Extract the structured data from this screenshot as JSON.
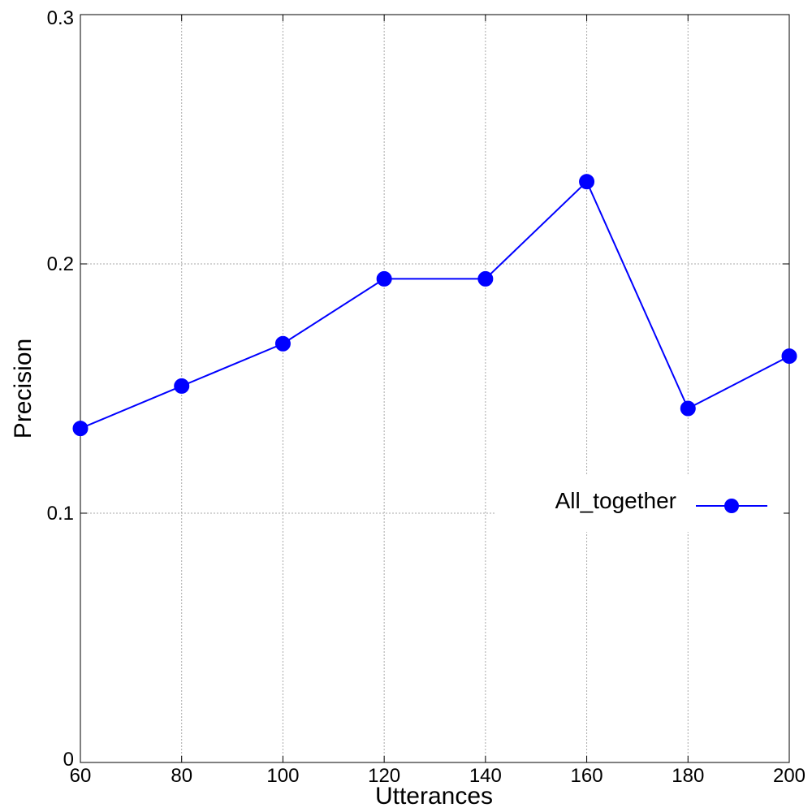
{
  "chart_data": {
    "type": "line",
    "title": "",
    "xlabel": "Utterances",
    "ylabel": "Precision",
    "xlim": [
      60,
      200
    ],
    "ylim": [
      0,
      0.3
    ],
    "x_ticks": [
      60,
      80,
      100,
      120,
      140,
      160,
      180,
      200
    ],
    "x_tick_labels": [
      "60",
      "80",
      "100",
      "120",
      "140",
      "160",
      "180",
      "200"
    ],
    "y_ticks": [
      0,
      0.1,
      0.2,
      0.3
    ],
    "y_tick_labels": [
      "0",
      "0.1",
      "0.2",
      "0.3"
    ],
    "grid": true,
    "legend_position": "center-right",
    "series": [
      {
        "name": "All_together",
        "color": "#0000ff",
        "marker": "circle",
        "x": [
          60,
          80,
          100,
          120,
          140,
          160,
          180,
          200
        ],
        "y": [
          0.134,
          0.151,
          0.168,
          0.194,
          0.194,
          0.233,
          0.142,
          0.163
        ]
      }
    ]
  }
}
